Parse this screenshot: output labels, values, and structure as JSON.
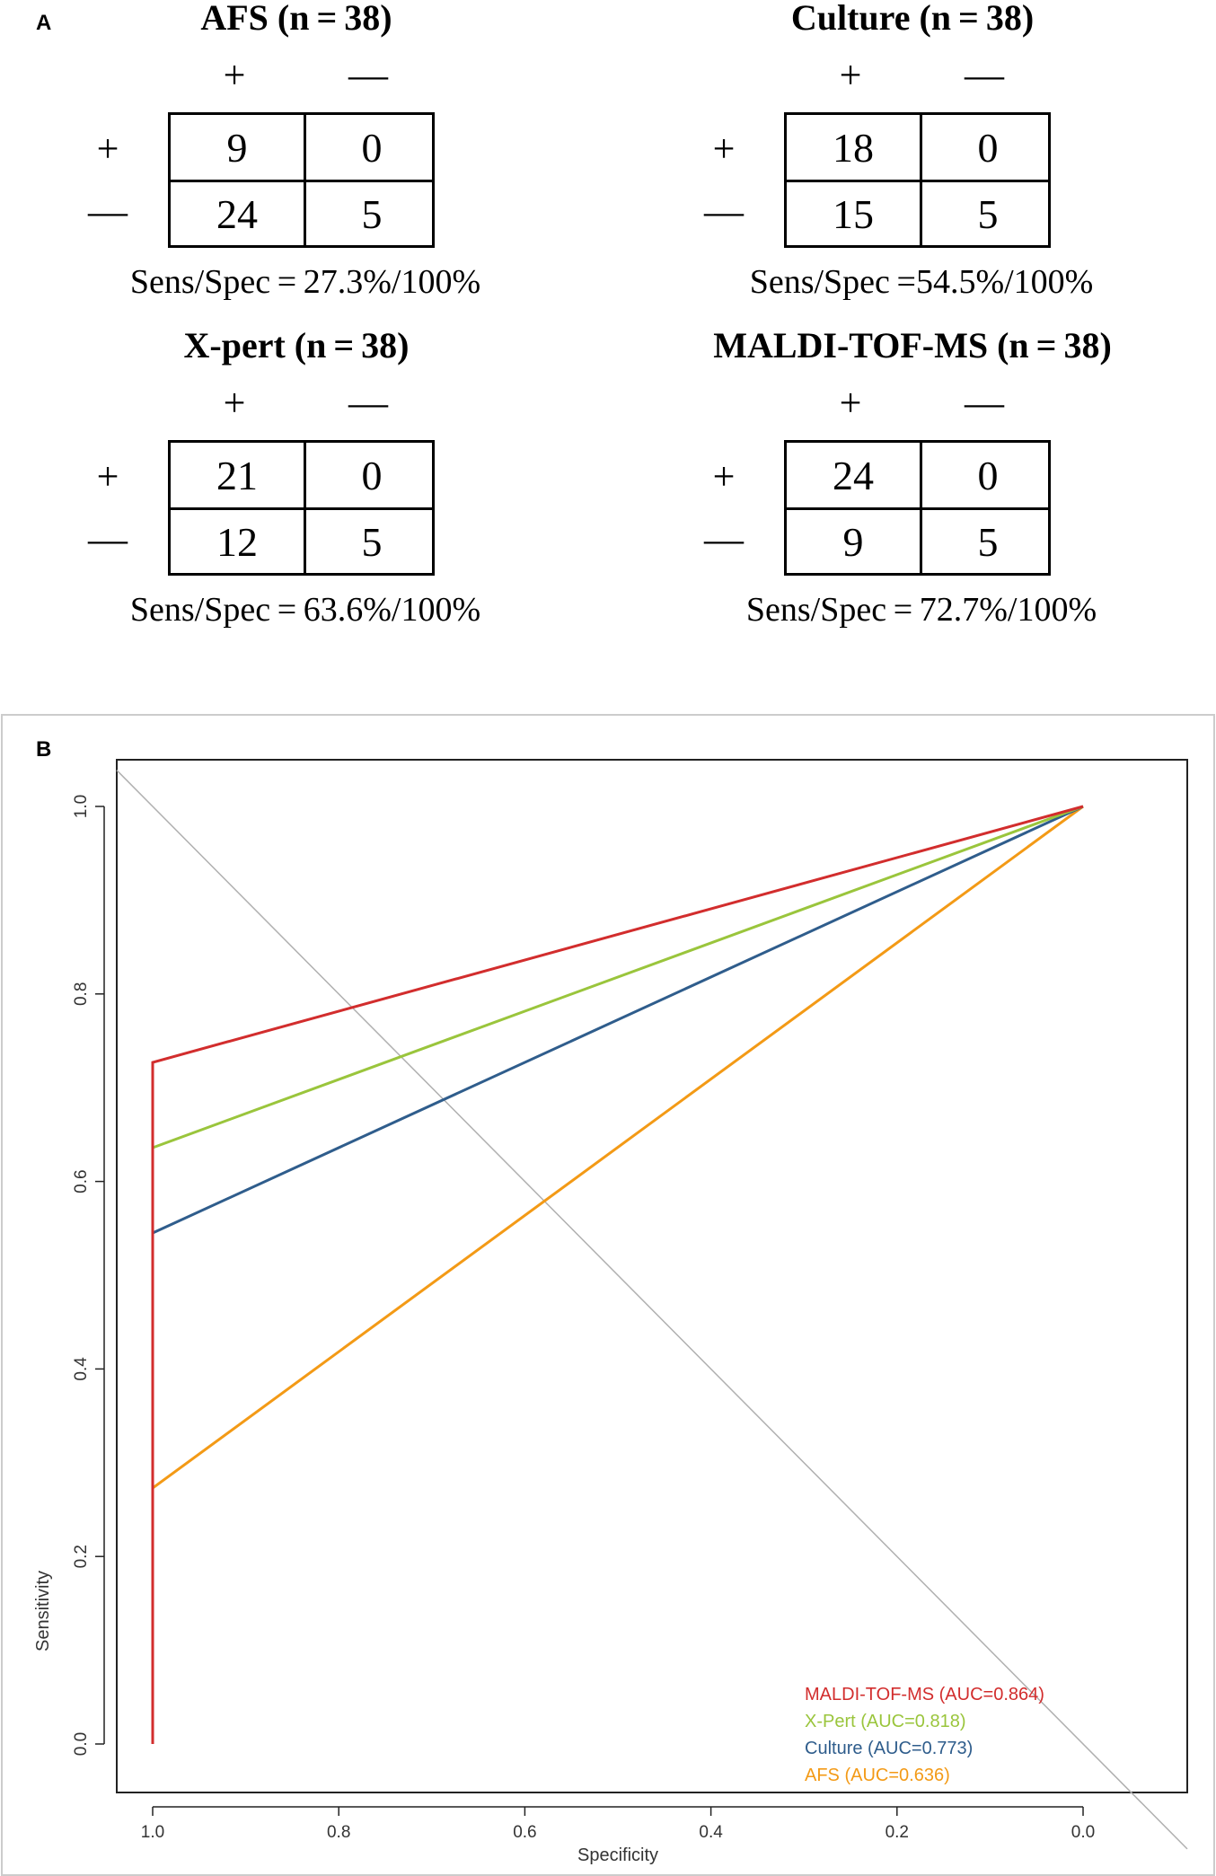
{
  "panel_a": {
    "letter": "A",
    "tables": [
      {
        "title": "AFS (n = 38)",
        "col_labels": [
          "+",
          "—"
        ],
        "row_labels": [
          "+",
          "—"
        ],
        "cells": [
          "9",
          "0",
          "24",
          "5"
        ],
        "stat": "Sens/Spec = 27.3%/100%"
      },
      {
        "title": "Culture (n = 38)",
        "col_labels": [
          "+",
          "—"
        ],
        "row_labels": [
          "+",
          "—"
        ],
        "cells": [
          "18",
          "0",
          "15",
          "5"
        ],
        "stat": "Sens/Spec =54.5%/100%"
      },
      {
        "title": "X-pert (n = 38)",
        "col_labels": [
          "+",
          "—"
        ],
        "row_labels": [
          "+",
          "—"
        ],
        "cells": [
          "21",
          "0",
          "12",
          "5"
        ],
        "stat": "Sens/Spec = 63.6%/100%"
      },
      {
        "title": "MALDI-TOF-MS (n = 38)",
        "col_labels": [
          "+",
          "—"
        ],
        "row_labels": [
          "+",
          "—"
        ],
        "cells": [
          "24",
          "0",
          "9",
          "5"
        ],
        "stat": "Sens/Spec = 72.7%/100%"
      }
    ]
  },
  "panel_b": {
    "letter": "B"
  },
  "chart_data": {
    "type": "line",
    "xlabel": "Specificity",
    "ylabel": "Sensitivity",
    "xlim": [
      1.0,
      0.0
    ],
    "ylim": [
      0.0,
      1.0
    ],
    "x_ticks": [
      "1.0",
      "0.8",
      "0.6",
      "0.4",
      "0.2",
      "0.0"
    ],
    "y_ticks": [
      "0.0",
      "0.2",
      "0.4",
      "0.6",
      "0.8",
      "1.0"
    ],
    "legend_position": "bottom-right",
    "diagonal_color": "#b0b0b0",
    "series": [
      {
        "name": "AFS",
        "legend": "AFS (AUC=0.636)",
        "color": "#f39a16",
        "points": [
          [
            1.0,
            0.0
          ],
          [
            1.0,
            0.273
          ],
          [
            0.0,
            1.0
          ]
        ]
      },
      {
        "name": "Culture",
        "legend": "Culture (AUC=0.773)",
        "color": "#2f5d8c",
        "points": [
          [
            1.0,
            0.0
          ],
          [
            1.0,
            0.545
          ],
          [
            0.0,
            1.0
          ]
        ]
      },
      {
        "name": "X-Pert",
        "legend": "X-Pert (AUC=0.818)",
        "color": "#9ac53c",
        "points": [
          [
            1.0,
            0.0
          ],
          [
            1.0,
            0.636
          ],
          [
            0.0,
            1.0
          ]
        ]
      },
      {
        "name": "MALDI-TOF-MS",
        "legend": "MALDI-TOF-MS (AUC=0.864)",
        "color": "#d22d2d",
        "points": [
          [
            1.0,
            0.0
          ],
          [
            1.0,
            0.727
          ],
          [
            0.0,
            1.0
          ]
        ]
      }
    ]
  }
}
